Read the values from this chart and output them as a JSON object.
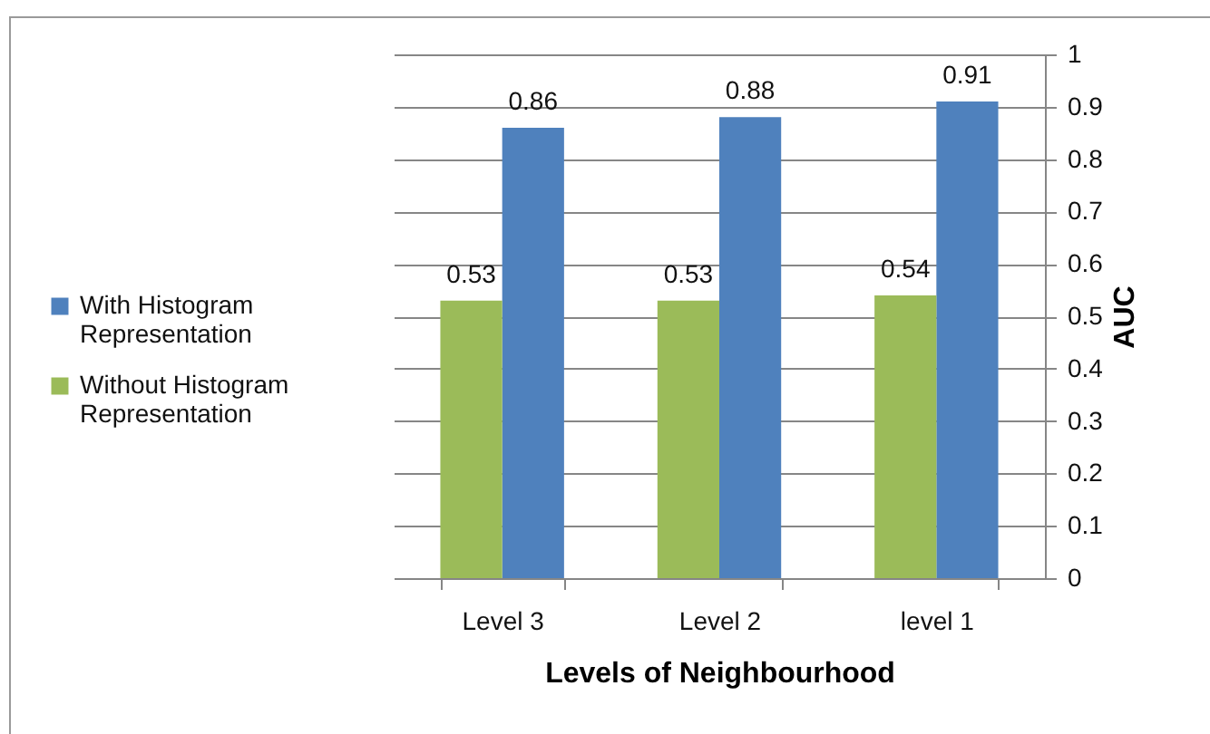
{
  "chart_data": {
    "type": "bar",
    "xlabel": "Levels of Neighbourhood",
    "ylabel": "AUC",
    "categories": [
      "Level 3",
      "Level 2",
      "level 1"
    ],
    "series": [
      {
        "name": "With Histogram Representation",
        "color": "#4f81bd",
        "values": [
          0.86,
          0.88,
          0.91
        ]
      },
      {
        "name": "Without Histogram Representation",
        "color": "#9bbb59",
        "values": [
          0.53,
          0.53,
          0.54
        ]
      }
    ],
    "ylim": [
      0,
      1
    ],
    "yticks": [
      0,
      0.1,
      0.2,
      0.3,
      0.4,
      0.5,
      0.6,
      0.7,
      0.8,
      0.9,
      1
    ],
    "grid": "y",
    "legend": "left",
    "data_labels": true
  }
}
